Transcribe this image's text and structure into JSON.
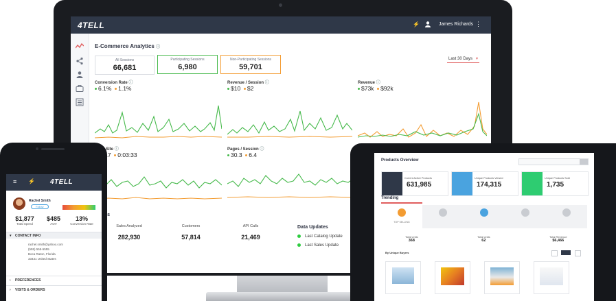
{
  "monitor": {
    "brand": "4TELL",
    "user_name": "James Richards",
    "page_title": "E-Commerce Analytics",
    "date_range": "Last 30 Days",
    "summary_cards": [
      {
        "label": "All Sessions",
        "value": "66,681"
      },
      {
        "label": "Participating Sessions",
        "value": "6,980"
      },
      {
        "label": "Non-Participating Sessions",
        "value": "59,701"
      }
    ],
    "metrics": [
      {
        "label": "Conversion Rate",
        "v1": "6.1%",
        "v2": "1.1%"
      },
      {
        "label": "Revenue / Session",
        "v1": "$10",
        "v2": "$2"
      },
      {
        "label": "Revenue",
        "v1": "$73k",
        "v2": "$92k"
      },
      {
        "label": "on Site",
        "v1": "7:17",
        "v2": "0:03:33"
      },
      {
        "label": "Pages / Session",
        "v1": "30.3",
        "v2": "6.4"
      }
    ],
    "stats_heading": "l Stats",
    "stats": [
      {
        "label": "Sales Analyzed",
        "value": "282,930"
      },
      {
        "label": "Customers",
        "value": "57,814"
      },
      {
        "label": "API Calls",
        "value": "21,469"
      }
    ],
    "updates_heading": "Data Updates",
    "updates": [
      "Last Catalog Update",
      "Last Sales Update"
    ],
    "colors": {
      "participating": "#45b94a",
      "non_participating": "#f39c32",
      "topbar": "#2f3848"
    }
  },
  "phone": {
    "brand": "4TELL",
    "customer_name": "Rachel Smith",
    "follow_label": "Follow",
    "kpis": [
      {
        "value": "$1,877",
        "label": "Total Spend"
      },
      {
        "value": "$485",
        "label": "AOV"
      },
      {
        "value": "13%",
        "label": "Conversion Rate"
      }
    ],
    "contact_heading": "CONTACT INFO",
    "contact_lines": [
      "rachel.smith@yahoo.com",
      "(555) 555-5555",
      "Boca Raton, Florida",
      "33431 United States"
    ],
    "sections": [
      "PREFERENCES",
      "VISITS & ORDERS"
    ]
  },
  "tablet": {
    "title": "Products Overview",
    "stats": [
      {
        "label": "Current Active Products",
        "value": "631,985",
        "color": "#2f3848"
      },
      {
        "label": "Unique Products Viewed",
        "value": "174,315",
        "color": "#4aa3df"
      },
      {
        "label": "Unique Products Sold",
        "value": "1,735",
        "color": "#2ecc71"
      }
    ],
    "trending_label": "Trending",
    "tabs": [
      "TOP SELLING",
      "",
      "",
      "",
      ""
    ],
    "totals": [
      {
        "label": "Total Units",
        "value": "368"
      },
      {
        "label": "Total Units",
        "value": "62"
      },
      {
        "label": "Total Revenue",
        "value": "$6,466"
      }
    ],
    "list_label": "By Unique Buyers"
  }
}
